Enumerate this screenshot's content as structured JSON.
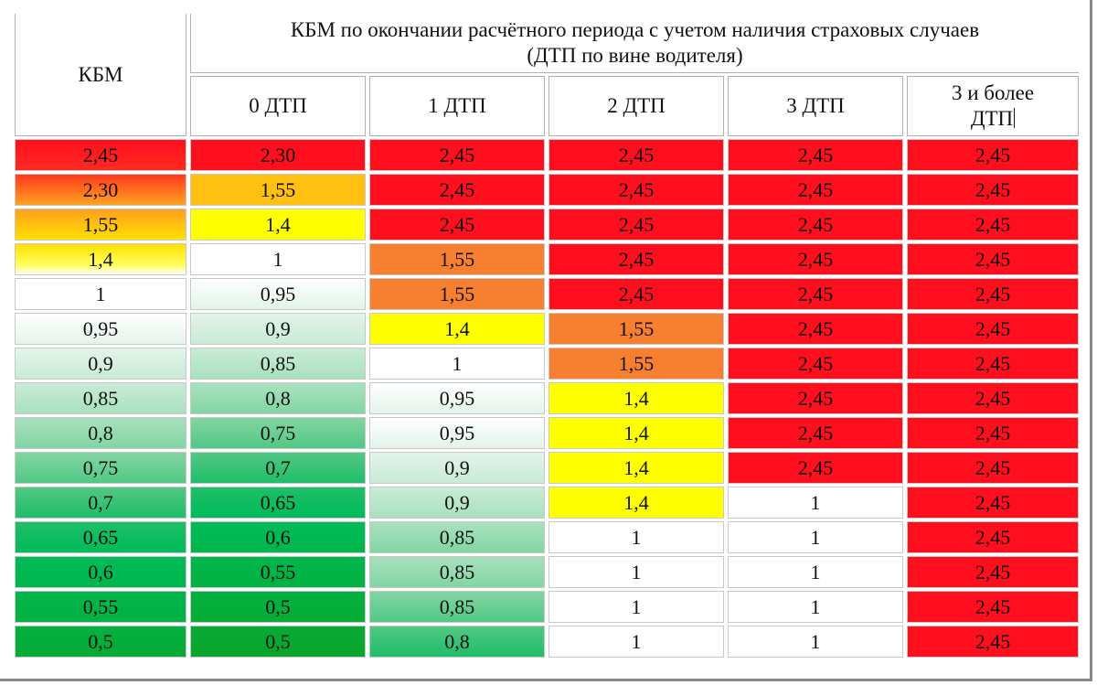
{
  "header": {
    "kbm_label": "КБМ",
    "main_title_line1": "КБМ по окончании расчётного периода с учетом наличия страховых случаев",
    "main_title_line2": "(ДТП по вине водителя)",
    "columns": [
      "0 ДТП",
      "1 ДТП",
      "2 ДТП",
      "3 ДТП"
    ],
    "last_column_line1": "3 и более",
    "last_column_line2": "ДТП"
  },
  "rows": [
    {
      "kbm": "2,45",
      "v": [
        "2,30",
        "2,45",
        "2,45",
        "2,45",
        "2,45"
      ]
    },
    {
      "kbm": "2,30",
      "v": [
        "1,55",
        "2,45",
        "2,45",
        "2,45",
        "2,45"
      ]
    },
    {
      "kbm": "1,55",
      "v": [
        "1,4",
        "2,45",
        "2,45",
        "2,45",
        "2,45"
      ]
    },
    {
      "kbm": "1,4",
      "v": [
        "1",
        "1,55",
        "2,45",
        "2,45",
        "2,45"
      ]
    },
    {
      "kbm": "1",
      "v": [
        "0,95",
        "1,55",
        "2,45",
        "2,45",
        "2,45"
      ]
    },
    {
      "kbm": "0,95",
      "v": [
        "0,9",
        "1,4",
        "1,55",
        "2,45",
        "2,45"
      ]
    },
    {
      "kbm": "0,9",
      "v": [
        "0,85",
        "1",
        "1,55",
        "2,45",
        "2,45"
      ]
    },
    {
      "kbm": "0,85",
      "v": [
        "0,8",
        "0,95",
        "1,4",
        "2,45",
        "2,45"
      ]
    },
    {
      "kbm": "0,8",
      "v": [
        "0,75",
        "0,95",
        "1,4",
        "2,45",
        "2,45"
      ]
    },
    {
      "kbm": "0,75",
      "v": [
        "0,7",
        "0,9",
        "1,4",
        "2,45",
        "2,45"
      ]
    },
    {
      "kbm": "0,7",
      "v": [
        "0,65",
        "0,9",
        "1,4",
        "1",
        "2,45"
      ]
    },
    {
      "kbm": "0,65",
      "v": [
        "0,6",
        "0,85",
        "1",
        "1",
        "2,45"
      ]
    },
    {
      "kbm": "0,6",
      "v": [
        "0,55",
        "0,85",
        "1",
        "1",
        "2,45"
      ]
    },
    {
      "kbm": "0,55",
      "v": [
        "0,5",
        "0,85",
        "1",
        "1",
        "2,45"
      ]
    },
    {
      "kbm": "0,5",
      "v": [
        "0,5",
        "0,8",
        "1",
        "1",
        "2,45"
      ]
    }
  ],
  "colors": {
    "red": "#ff0f1e",
    "orange": "#f77f30",
    "amber": "#ffc012",
    "yellow": "#ffff00",
    "white": "#ffffff",
    "green": "#00b64c"
  }
}
